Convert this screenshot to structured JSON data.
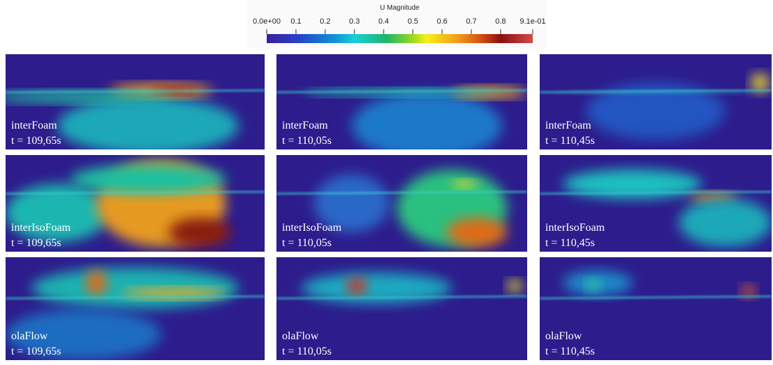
{
  "colorbar": {
    "title": "U Magnitude",
    "ticks": [
      {
        "value": 0,
        "label": "0.0e+00"
      },
      0.1,
      0.2,
      0.3,
      0.4,
      0.5,
      0.6,
      0.7,
      0.8,
      {
        "value": 0.91,
        "label": "9.1e-01"
      }
    ]
  },
  "panels": [
    {
      "solver": "interFoam",
      "time": "t = 109,65s"
    },
    {
      "solver": "interFoam",
      "time": "t = 110,05s"
    },
    {
      "solver": "interFoam",
      "time": "t = 110,45s"
    },
    {
      "solver": "interIsoFoam",
      "time": "t = 109,65s"
    },
    {
      "solver": "interIsoFoam",
      "time": "t = 110,05s"
    },
    {
      "solver": "interIsoFoam",
      "time": "t = 110,45s"
    },
    {
      "solver": "olaFlow",
      "time": "t = 109,65s"
    },
    {
      "solver": "olaFlow",
      "time": "t = 110,05s"
    },
    {
      "solver": "olaFlow",
      "time": "t = 110,45s"
    }
  ]
}
